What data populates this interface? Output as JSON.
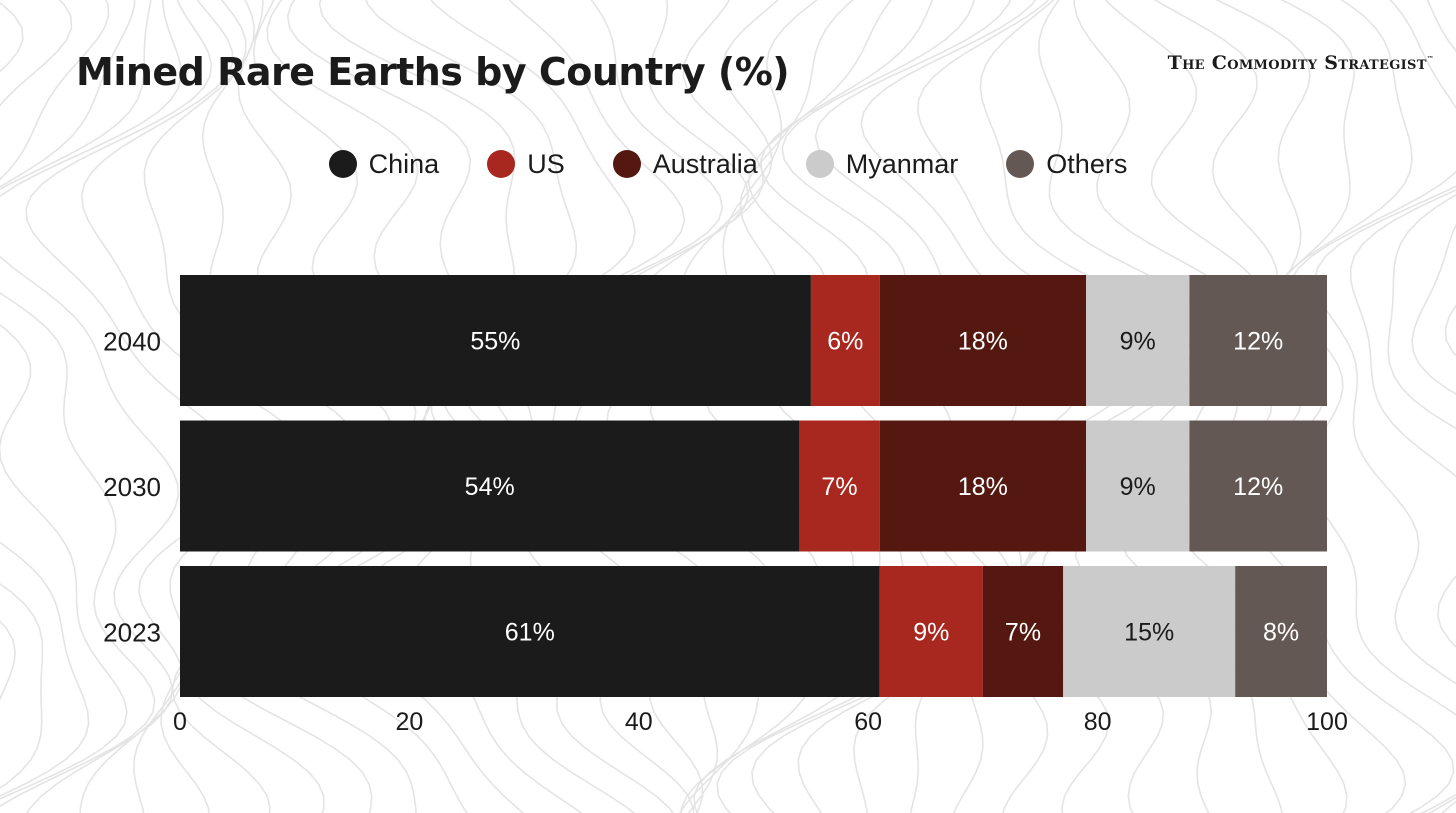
{
  "brand": {
    "name": "The Commodity Strategist",
    "trademark": "™"
  },
  "chart_data": {
    "type": "bar",
    "orientation": "horizontal",
    "stacked": true,
    "title": "Mined Rare Earths by Country (%)",
    "categories": [
      "2040",
      "2030",
      "2023"
    ],
    "series": [
      {
        "name": "China",
        "color": "#1b1b1b",
        "label_color": "#ffffff",
        "values": [
          55,
          54,
          61
        ]
      },
      {
        "name": "US",
        "color": "#a8281f",
        "label_color": "#ffffff",
        "values": [
          6,
          7,
          9
        ]
      },
      {
        "name": "Australia",
        "color": "#541810",
        "label_color": "#ffffff",
        "values": [
          18,
          18,
          7
        ]
      },
      {
        "name": "Myanmar",
        "color": "#cbcbcb",
        "label_color": "#1b1b1b",
        "values": [
          9,
          9,
          15
        ]
      },
      {
        "name": "Others",
        "color": "#645854",
        "label_color": "#ffffff",
        "values": [
          12,
          12,
          8
        ]
      }
    ],
    "data_labels": [
      [
        "55%",
        "54%",
        "61%"
      ],
      [
        "6%",
        "7%",
        "9%"
      ],
      [
        "18%",
        "18%",
        "7%"
      ],
      [
        "9%",
        "9%",
        "15%"
      ],
      [
        "12%",
        "12%",
        "8%"
      ]
    ],
    "xlim": [
      0,
      100
    ],
    "xticks": [
      "0",
      "20",
      "40",
      "60",
      "80",
      "100"
    ],
    "xlabel": "",
    "ylabel": "",
    "legend_position": "top-center",
    "grid": false
  }
}
